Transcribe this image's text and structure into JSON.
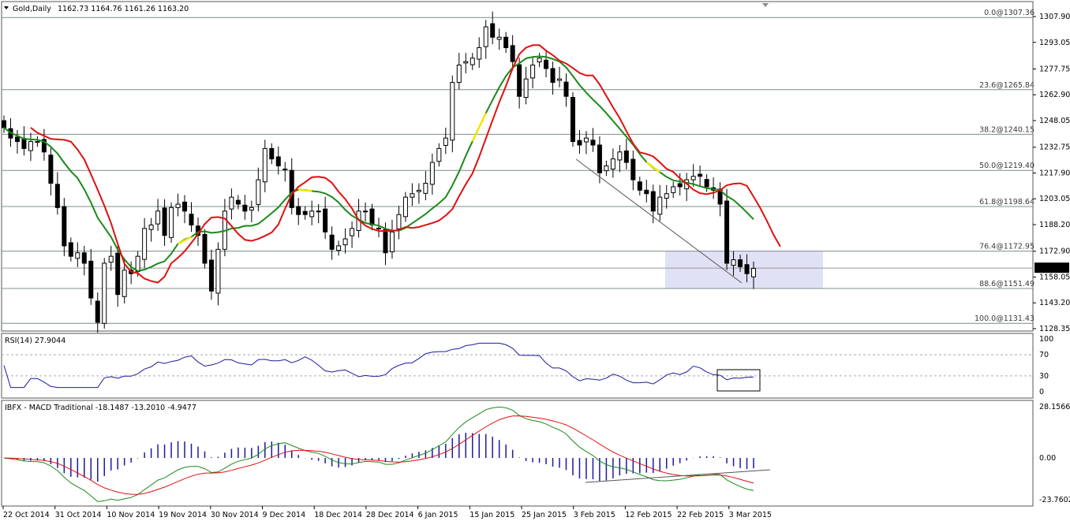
{
  "window": {
    "symbol_title": "Gold,Daily",
    "ohlc_text": "1162.73 1164.76 1161.26 1163.20",
    "menu_icon": "triangle-down-icon"
  },
  "chart_data": [
    {
      "type": "candlestick",
      "title": "Gold,Daily",
      "ylim": [
        1121.5,
        1313.5
      ],
      "y_ticks": [
        1307.9,
        1293.05,
        1277.75,
        1262.9,
        1248.05,
        1232.75,
        1217.9,
        1203.05,
        1188.2,
        1172.9,
        1158.05,
        1143.2,
        1128.35
      ],
      "current_price": 1163.2,
      "x_labels": [
        "22 Oct 2014",
        "31 Oct 2014",
        "10 Nov 2014",
        "19 Nov 2014",
        "30 Nov 2014",
        "9 Dec 2014",
        "18 Dec 2014",
        "28 Dec 2014",
        "6 Jan 2015",
        "15 Jan 2015",
        "25 Jan 2015",
        "3 Feb 2015",
        "12 Feb 2015",
        "22 Feb 2015",
        "3 Mar 2015"
      ],
      "fib_levels": [
        {
          "label": "0.0@1307.36",
          "value": 1307.36
        },
        {
          "label": "23.6@1265.84",
          "value": 1265.84
        },
        {
          "label": "38.2@1240.15",
          "value": 1240.15
        },
        {
          "label": "50.0@1219.40",
          "value": 1219.4
        },
        {
          "label": "61.8@1198.64",
          "value": 1198.64
        },
        {
          "label": "76.4@1172.95",
          "value": 1172.95
        },
        {
          "label": "88.6@1151.49",
          "value": 1151.49
        },
        {
          "label": "100.0@1131.43",
          "value": 1131.43
        }
      ],
      "support_zone": {
        "from": 1151.5,
        "to": 1173.0,
        "color": "#dcdcf5"
      },
      "closes": [
        1244,
        1238,
        1236,
        1232,
        1236,
        1236,
        1230,
        1212,
        1198,
        1176,
        1170,
        1172,
        1166,
        1146,
        1132,
        1166,
        1170,
        1148,
        1162,
        1160,
        1170,
        1186,
        1188,
        1196,
        1182,
        1198,
        1200,
        1196,
        1188,
        1182,
        1166,
        1150,
        1174,
        1196,
        1204,
        1200,
        1196,
        1198,
        1214,
        1232,
        1226,
        1222,
        1220,
        1198,
        1194,
        1194,
        1196,
        1196,
        1184,
        1174,
        1176,
        1180,
        1186,
        1196,
        1196,
        1188,
        1186,
        1172,
        1184,
        1194,
        1204,
        1206,
        1208,
        1212,
        1224,
        1232,
        1238,
        1270,
        1280,
        1282,
        1284,
        1290,
        1302,
        1296,
        1296,
        1290,
        1282,
        1262,
        1272,
        1280,
        1284,
        1278,
        1270,
        1272,
        1262,
        1236,
        1234,
        1238,
        1234,
        1218,
        1222,
        1226,
        1230,
        1224,
        1214,
        1208,
        1206,
        1196,
        1204,
        1206,
        1210,
        1210,
        1214,
        1216,
        1216,
        1210,
        1208,
        1200,
        1166,
        1168,
        1164,
        1160,
        1163
      ],
      "rsi": {
        "label": "RSI(14) 27.9044",
        "levels": [
          100,
          70,
          30,
          0
        ],
        "last": 27.9044
      },
      "macd": {
        "label": "IBFX - MACD Traditional -18.1487 -13.2010 -4.9477",
        "y_ticks": [
          28.1566,
          0.0,
          -23.7602
        ]
      }
    }
  ]
}
